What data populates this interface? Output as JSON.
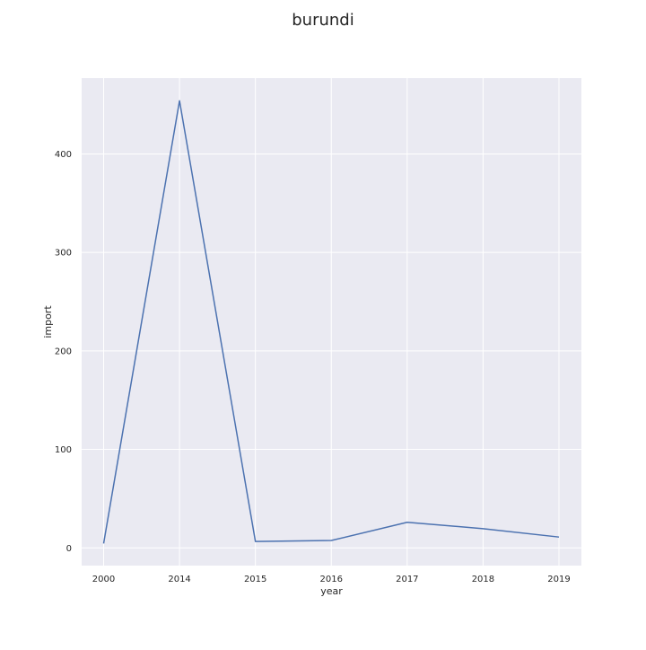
{
  "chart_data": {
    "type": "line",
    "title": "burundi",
    "xlabel": "year",
    "ylabel": "import",
    "categories": [
      "2000",
      "2014",
      "2015",
      "2016",
      "2017",
      "2018",
      "2019"
    ],
    "series": [
      {
        "values": [
          4.5,
          454,
          6.5,
          7.5,
          26,
          19.5,
          11
        ]
      }
    ],
    "ylim": [
      -18,
      477
    ],
    "yticks": [
      "0",
      "100",
      "200",
      "300",
      "400"
    ],
    "grid": true,
    "colors": {
      "background": "#eaeaf2",
      "grid": "#ffffff",
      "line": "#4c72b0"
    }
  }
}
